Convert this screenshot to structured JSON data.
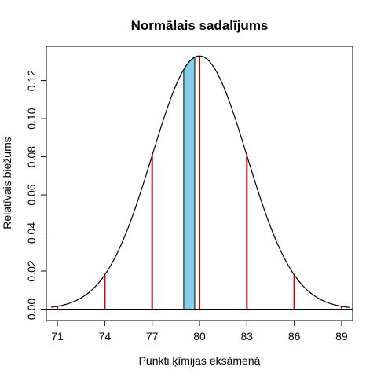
{
  "chart_data": {
    "type": "line",
    "title": "Normālais sadalījums",
    "xlabel": "Punkti ķīmijas eksāmenā",
    "ylabel": "Relatīvais biežums",
    "xlim": [
      70.3,
      89.7
    ],
    "ylim": [
      -0.006,
      0.138
    ],
    "x_ticks": [
      71,
      74,
      77,
      80,
      83,
      86,
      89
    ],
    "x_tick_labels": [
      "71",
      "74",
      "77",
      "80",
      "83",
      "86",
      "89"
    ],
    "y_ticks": [
      0.0,
      0.02,
      0.04,
      0.06,
      0.08,
      0.1,
      0.12
    ],
    "y_tick_labels": [
      "0.00",
      "0.02",
      "0.04",
      "0.06",
      "0.08",
      "0.10",
      "0.12"
    ],
    "distribution": {
      "name": "normal",
      "mean": 80,
      "sd": 3
    },
    "curve_x_range": [
      70.6,
      89.5
    ],
    "shaded_interval": {
      "from": 79,
      "to": 79.7,
      "color": "#87CEEB"
    },
    "vertical_lines": {
      "x": [
        71,
        74,
        77,
        80,
        83,
        86,
        89
      ],
      "y": [
        0.0015,
        0.018,
        0.0807,
        0.133,
        0.0807,
        0.018,
        0.0015
      ],
      "color": "#CC0000"
    },
    "curve_color": "#000000",
    "baseline": 0,
    "grid": false,
    "legend": "none"
  }
}
